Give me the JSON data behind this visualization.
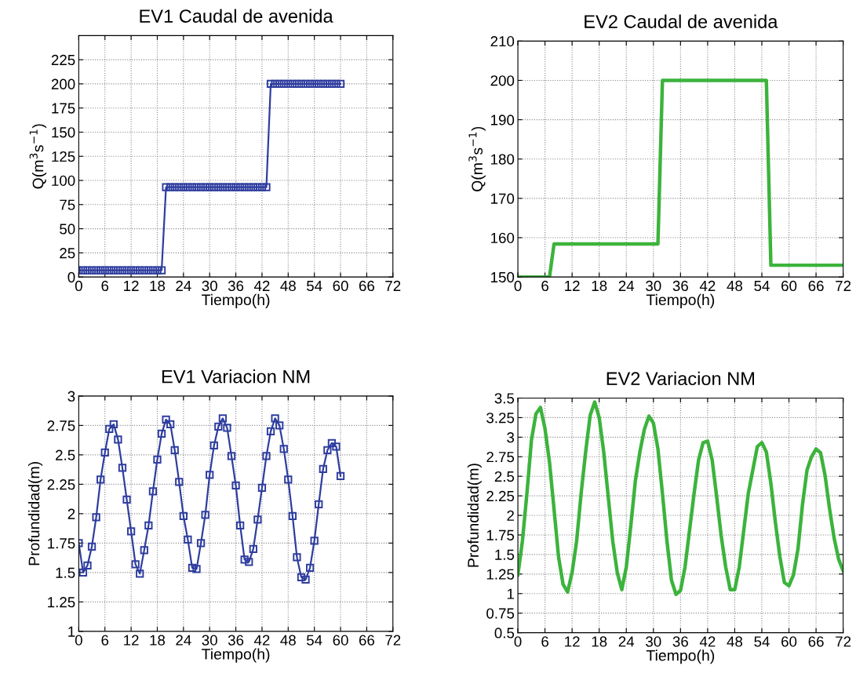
{
  "chart_data": [
    {
      "type": "line",
      "title": "EV1 Caudal de avenida",
      "xlabel": "Tiempo(h)",
      "ylabel": "Q(m$^{3}$s$^{−1}$)",
      "xlim": [
        0,
        72
      ],
      "xticks": [
        0,
        6,
        12,
        18,
        24,
        30,
        36,
        42,
        48,
        54,
        60,
        66,
        72
      ],
      "ylim": [
        0,
        250
      ],
      "yticks": [
        0,
        25,
        50,
        75,
        100,
        125,
        150,
        175,
        200,
        225
      ],
      "grid": true,
      "marker": "square",
      "line_style": "solid",
      "series": [
        {
          "color": "#2e3d9f",
          "x": [
            0,
            1,
            2,
            3,
            4,
            5,
            6,
            7,
            8,
            9,
            10,
            11,
            12,
            13,
            14,
            15,
            16,
            17,
            18,
            19,
            20,
            21,
            22,
            23,
            24,
            25,
            26,
            27,
            28,
            29,
            30,
            31,
            32,
            33,
            34,
            35,
            36,
            37,
            38,
            39,
            40,
            41,
            42,
            43,
            44,
            45,
            46,
            47,
            48,
            49,
            50,
            51,
            52,
            53,
            54,
            55,
            56,
            57,
            58,
            59,
            60
          ],
          "values": [
            7,
            7,
            7,
            7,
            7,
            7,
            7,
            7,
            7,
            7,
            7,
            7,
            7,
            7,
            7,
            7,
            7,
            7,
            7,
            7,
            93,
            93,
            93,
            93,
            93,
            93,
            93,
            93,
            93,
            93,
            93,
            93,
            93,
            93,
            93,
            93,
            93,
            93,
            93,
            93,
            93,
            93,
            93,
            93,
            200,
            200,
            200,
            200,
            200,
            200,
            200,
            200,
            200,
            200,
            200,
            200,
            200,
            200,
            200,
            200,
            200
          ]
        }
      ]
    },
    {
      "type": "line",
      "title": "EV2 Caudal de avenida",
      "xlabel": "Tiempo(h)",
      "ylabel": "Q(m$^{3}$s$^{−1}$)",
      "xlim": [
        0,
        72
      ],
      "xticks": [
        0,
        6,
        12,
        18,
        24,
        30,
        36,
        42,
        48,
        54,
        60,
        66,
        72
      ],
      "ylim": [
        150,
        210
      ],
      "yticks": [
        150,
        160,
        170,
        180,
        190,
        200,
        210
      ],
      "grid": true,
      "marker": "none",
      "line_style": "solid",
      "series": [
        {
          "color": "#3cb33c",
          "x": [
            0,
            7,
            8,
            31,
            32,
            55,
            56,
            72
          ],
          "values": [
            150,
            150,
            158.4,
            158.4,
            200,
            200,
            153,
            153
          ]
        }
      ]
    },
    {
      "type": "line",
      "title": "EV1 Variacion NM",
      "xlabel": "Tiempo(h)",
      "ylabel": "Profundidad(m)",
      "xlim": [
        0,
        72
      ],
      "xticks": [
        0,
        6,
        12,
        18,
        24,
        30,
        36,
        42,
        48,
        54,
        60,
        66,
        72
      ],
      "ylim": [
        1,
        3
      ],
      "yticks": [
        1,
        1.25,
        1.5,
        1.75,
        2,
        2.25,
        2.5,
        2.75,
        3
      ],
      "grid": true,
      "marker": "square",
      "line_style": "solid",
      "series": [
        {
          "color": "#2e3d9f",
          "x": [
            0,
            1,
            2,
            3,
            4,
            5,
            6,
            7,
            8,
            9,
            10,
            11,
            12,
            13,
            14,
            15,
            16,
            17,
            18,
            19,
            20,
            21,
            22,
            23,
            24,
            25,
            26,
            27,
            28,
            29,
            30,
            31,
            32,
            33,
            34,
            35,
            36,
            37,
            38,
            39,
            40,
            41,
            42,
            43,
            44,
            45,
            46,
            47,
            48,
            49,
            50,
            51,
            52,
            53,
            54,
            55,
            56,
            57,
            58,
            59,
            60
          ],
          "values": [
            1.75,
            1.5,
            1.56,
            1.72,
            1.97,
            2.29,
            2.52,
            2.72,
            2.76,
            2.63,
            2.39,
            2.12,
            1.85,
            1.57,
            1.49,
            1.69,
            1.9,
            2.19,
            2.46,
            2.68,
            2.8,
            2.76,
            2.54,
            2.27,
            1.98,
            1.78,
            1.54,
            1.53,
            1.75,
            1.99,
            2.33,
            2.58,
            2.74,
            2.81,
            2.73,
            2.49,
            2.24,
            1.9,
            1.61,
            1.59,
            1.7,
            1.95,
            2.22,
            2.49,
            2.7,
            2.81,
            2.75,
            2.55,
            2.29,
            1.98,
            1.63,
            1.46,
            1.44,
            1.54,
            1.77,
            2.08,
            2.38,
            2.54,
            2.6,
            2.57,
            2.32
          ]
        }
      ]
    },
    {
      "type": "line",
      "title": "EV2 Variacion NM",
      "xlabel": "Tiempo(h)",
      "ylabel": "Profundidad(m)",
      "xlim": [
        0,
        72
      ],
      "xticks": [
        0,
        6,
        12,
        18,
        24,
        30,
        36,
        42,
        48,
        54,
        60,
        66,
        72
      ],
      "ylim": [
        0.5,
        3.5
      ],
      "yticks": [
        0.5,
        0.75,
        1,
        1.25,
        1.5,
        1.75,
        2,
        2.25,
        2.5,
        2.75,
        3,
        3.25,
        3.5
      ],
      "grid": true,
      "marker": "none",
      "line_style": "solid",
      "series": [
        {
          "color": "#3cb33c",
          "x": [
            0,
            1,
            2,
            3,
            4,
            5,
            6,
            7,
            8,
            9,
            10,
            11,
            12,
            13,
            14,
            15,
            16,
            17,
            18,
            19,
            20,
            21,
            22,
            23,
            24,
            25,
            26,
            27,
            28,
            29,
            30,
            31,
            32,
            33,
            34,
            35,
            36,
            37,
            38,
            39,
            40,
            41,
            42,
            43,
            44,
            45,
            46,
            47,
            48,
            49,
            50,
            51,
            52,
            53,
            54,
            55,
            56,
            57,
            58,
            59,
            60,
            61,
            62,
            63,
            64,
            65,
            66,
            67,
            68,
            69,
            70,
            71,
            72
          ],
          "values": [
            1.24,
            1.67,
            2.28,
            2.96,
            3.3,
            3.38,
            3.11,
            2.68,
            2.08,
            1.47,
            1.12,
            1.02,
            1.27,
            1.67,
            2.28,
            2.81,
            3.28,
            3.45,
            3.25,
            2.81,
            2.24,
            1.67,
            1.27,
            1.05,
            1.34,
            1.87,
            2.44,
            2.81,
            3.1,
            3.27,
            3.18,
            2.85,
            2.28,
            1.67,
            1.17,
            0.99,
            1.04,
            1.34,
            1.81,
            2.28,
            2.71,
            2.93,
            2.95,
            2.71,
            2.24,
            1.74,
            1.34,
            1.05,
            1.05,
            1.34,
            1.81,
            2.28,
            2.58,
            2.88,
            2.93,
            2.81,
            2.41,
            1.91,
            1.47,
            1.14,
            1.1,
            1.24,
            1.57,
            2.14,
            2.58,
            2.75,
            2.85,
            2.8,
            2.51,
            2.08,
            1.71,
            1.44,
            1.29
          ]
        }
      ]
    }
  ]
}
